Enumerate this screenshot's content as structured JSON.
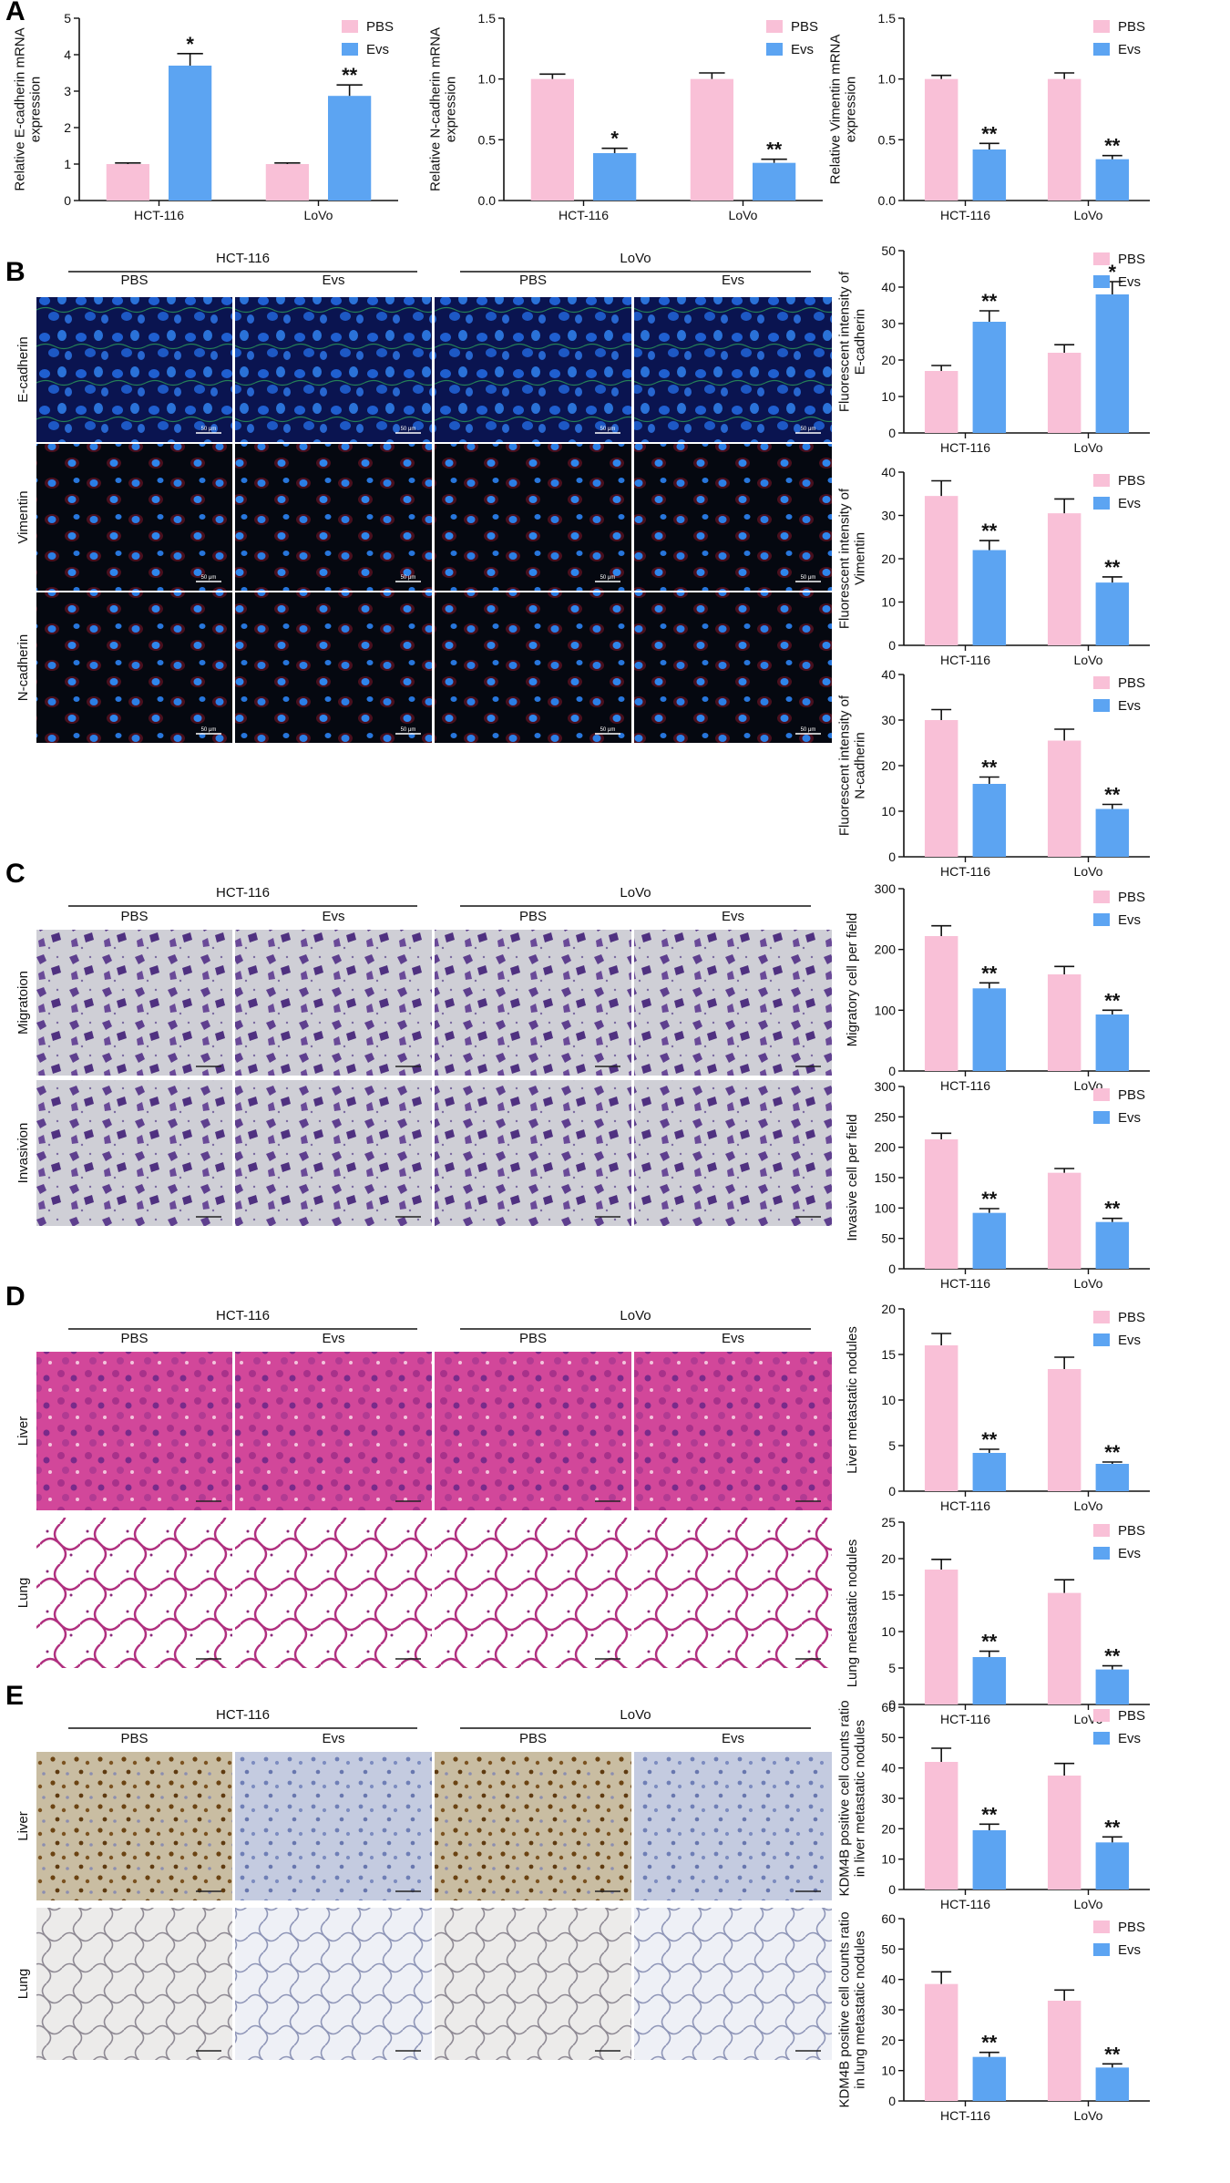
{
  "panel_letters": [
    "A",
    "B",
    "C",
    "D",
    "E"
  ],
  "colors": {
    "pbs": "#F9C0D7",
    "evs": "#5CA4F2",
    "ink": "#111111"
  },
  "image_blocks": [
    {
      "panel": "B",
      "cell_lines": [
        "HCT-116",
        "LoVo"
      ],
      "conditions": [
        "PBS",
        "Evs",
        "PBS",
        "Evs"
      ],
      "rows": [
        "E-cadherin",
        "Vimentin",
        "N-cadherin"
      ],
      "scalebar_label": "50 μm",
      "styles": [
        "if-green",
        "if-red",
        "if-red"
      ]
    },
    {
      "panel": "C",
      "cell_lines": [
        "HCT-116",
        "LoVo"
      ],
      "conditions": [
        "PBS",
        "Evs",
        "PBS",
        "Evs"
      ],
      "rows": [
        "Migratoion",
        "Invasivion"
      ],
      "styles": [
        "transwell",
        "transwell"
      ]
    },
    {
      "panel": "D",
      "cell_lines": [
        "HCT-116",
        "LoVo"
      ],
      "conditions": [
        "PBS",
        "Evs",
        "PBS",
        "Evs"
      ],
      "rows": [
        "Liver",
        "Lung"
      ],
      "styles": [
        "he-liver",
        "he-lung"
      ]
    },
    {
      "panel": "E",
      "cell_lines": [
        "HCT-116",
        "LoVo"
      ],
      "conditions": [
        "PBS",
        "Evs",
        "PBS",
        "Evs"
      ],
      "rows": [
        "Liver",
        "Lung"
      ],
      "styles": [
        "ihc-liver",
        "ihc-lung"
      ]
    }
  ],
  "chart_data": [
    {
      "type": "bar",
      "panel": "A",
      "categories": [
        "HCT-116",
        "LoVo"
      ],
      "ylabel": "Relative E-cadherin mRNA\nexpression",
      "ylim": [
        0,
        5
      ],
      "yticks": [
        "0",
        "1",
        "2",
        "3",
        "4",
        "5"
      ],
      "series": [
        {
          "name": "PBS",
          "values": [
            1.0,
            1.0
          ],
          "errors": [
            0.03,
            0.03
          ],
          "marks": [
            "",
            ""
          ]
        },
        {
          "name": "Evs",
          "values": [
            3.7,
            2.87
          ],
          "errors": [
            0.33,
            0.3
          ],
          "marks": [
            "*",
            "**"
          ]
        }
      ]
    },
    {
      "type": "bar",
      "panel": "A",
      "categories": [
        "HCT-116",
        "LoVo"
      ],
      "ylabel": "Relative N-cadherin mRNA\nexpression",
      "ylim": [
        0,
        1.5
      ],
      "yticks": [
        "0.0",
        "0.5",
        "1.0",
        "1.5"
      ],
      "series": [
        {
          "name": "PBS",
          "values": [
            1.0,
            1.0
          ],
          "errors": [
            0.04,
            0.05
          ],
          "marks": [
            "",
            ""
          ]
        },
        {
          "name": "Evs",
          "values": [
            0.39,
            0.31
          ],
          "errors": [
            0.04,
            0.03
          ],
          "marks": [
            "*",
            "**"
          ]
        }
      ]
    },
    {
      "type": "bar",
      "panel": "A",
      "categories": [
        "HCT-116",
        "LoVo"
      ],
      "ylabel": "Relative Vimentin mRNA\nexpression",
      "ylim": [
        0,
        1.5
      ],
      "yticks": [
        "0.0",
        "0.5",
        "1.0",
        "1.5"
      ],
      "series": [
        {
          "name": "PBS",
          "values": [
            1.0,
            1.0
          ],
          "errors": [
            0.03,
            0.05
          ],
          "marks": [
            "",
            ""
          ]
        },
        {
          "name": "Evs",
          "values": [
            0.42,
            0.34
          ],
          "errors": [
            0.05,
            0.03
          ],
          "marks": [
            "**",
            "**"
          ]
        }
      ]
    },
    {
      "type": "bar",
      "panel": "B",
      "categories": [
        "HCT-116",
        "LoVo"
      ],
      "ylabel": "Fluorescent intensity of\nE-cadherin",
      "ylim": [
        0,
        50
      ],
      "yticks": [
        "0",
        "10",
        "20",
        "30",
        "40",
        "50"
      ],
      "series": [
        {
          "name": "PBS",
          "values": [
            17,
            22
          ],
          "errors": [
            1.5,
            2.2
          ],
          "marks": [
            "",
            ""
          ]
        },
        {
          "name": "Evs",
          "values": [
            30.5,
            38
          ],
          "errors": [
            3,
            3.5
          ],
          "marks": [
            "**",
            "*"
          ]
        }
      ]
    },
    {
      "type": "bar",
      "panel": "B",
      "categories": [
        "HCT-116",
        "LoVo"
      ],
      "ylabel": "Fluorescent intensity of\nVimentin",
      "ylim": [
        0,
        40
      ],
      "yticks": [
        "0",
        "10",
        "20",
        "30",
        "40"
      ],
      "series": [
        {
          "name": "PBS",
          "values": [
            34.5,
            30.5
          ],
          "errors": [
            3.5,
            3.3
          ],
          "marks": [
            "",
            ""
          ]
        },
        {
          "name": "Evs",
          "values": [
            22,
            14.5
          ],
          "errors": [
            2.2,
            1.3
          ],
          "marks": [
            "**",
            "**"
          ]
        }
      ]
    },
    {
      "type": "bar",
      "panel": "B",
      "categories": [
        "HCT-116",
        "LoVo"
      ],
      "ylabel": "Fluorescent intensity of\nN-cadherin",
      "ylim": [
        0,
        40
      ],
      "yticks": [
        "0",
        "10",
        "20",
        "30",
        "40"
      ],
      "series": [
        {
          "name": "PBS",
          "values": [
            30,
            25.5
          ],
          "errors": [
            2.3,
            2.5
          ],
          "marks": [
            "",
            ""
          ]
        },
        {
          "name": "Evs",
          "values": [
            16,
            10.5
          ],
          "errors": [
            1.5,
            1
          ],
          "marks": [
            "**",
            "**"
          ]
        }
      ]
    },
    {
      "type": "bar",
      "panel": "C",
      "categories": [
        "HCT-116",
        "LoVo"
      ],
      "ylabel": "Migratory cell per field",
      "ylim": [
        0,
        300
      ],
      "yticks": [
        "0",
        "100",
        "200",
        "300"
      ],
      "series": [
        {
          "name": "PBS",
          "values": [
            222,
            159
          ],
          "errors": [
            17,
            13
          ],
          "marks": [
            "",
            ""
          ]
        },
        {
          "name": "Evs",
          "values": [
            136,
            93
          ],
          "errors": [
            9,
            7
          ],
          "marks": [
            "**",
            "**"
          ]
        }
      ]
    },
    {
      "type": "bar",
      "panel": "C",
      "categories": [
        "HCT-116",
        "LoVo"
      ],
      "ylabel": "Invasive cell per field",
      "ylim": [
        0,
        300
      ],
      "yticks": [
        "0",
        "50",
        "100",
        "150",
        "200",
        "250",
        "300"
      ],
      "series": [
        {
          "name": "PBS",
          "values": [
            213,
            158
          ],
          "errors": [
            10,
            7
          ],
          "marks": [
            "",
            ""
          ]
        },
        {
          "name": "Evs",
          "values": [
            92,
            77
          ],
          "errors": [
            7,
            6
          ],
          "marks": [
            "**",
            "**"
          ]
        }
      ]
    },
    {
      "type": "bar",
      "panel": "D",
      "categories": [
        "HCT-116",
        "LoVo"
      ],
      "ylabel": "Liver metastatic nodules",
      "ylim": [
        0,
        20
      ],
      "yticks": [
        "0",
        "5",
        "10",
        "15",
        "20"
      ],
      "series": [
        {
          "name": "PBS",
          "values": [
            16,
            13.4
          ],
          "errors": [
            1.3,
            1.3
          ],
          "marks": [
            "",
            ""
          ]
        },
        {
          "name": "Evs",
          "values": [
            4.2,
            3
          ],
          "errors": [
            0.4,
            0.2
          ],
          "marks": [
            "**",
            "**"
          ]
        }
      ]
    },
    {
      "type": "bar",
      "panel": "D",
      "categories": [
        "HCT-116",
        "LoVo"
      ],
      "ylabel": "Lung metastatic nodules",
      "ylim": [
        0,
        25
      ],
      "yticks": [
        "0",
        "5",
        "10",
        "15",
        "20",
        "25"
      ],
      "series": [
        {
          "name": "PBS",
          "values": [
            18.5,
            15.3
          ],
          "errors": [
            1.4,
            1.8
          ],
          "marks": [
            "",
            ""
          ]
        },
        {
          "name": "Evs",
          "values": [
            6.5,
            4.8
          ],
          "errors": [
            0.8,
            0.5
          ],
          "marks": [
            "**",
            "**"
          ]
        }
      ]
    },
    {
      "type": "bar",
      "panel": "E",
      "categories": [
        "HCT-116",
        "LoVo"
      ],
      "ylabel": "KDM4B positive cell counts ratio\nin liver metastatic nodules",
      "ylim": [
        0,
        60
      ],
      "yticks": [
        "0",
        "10",
        "20",
        "30",
        "40",
        "50",
        "60"
      ],
      "series": [
        {
          "name": "PBS",
          "values": [
            42,
            37.5
          ],
          "errors": [
            4.5,
            4
          ],
          "marks": [
            "",
            ""
          ]
        },
        {
          "name": "Evs",
          "values": [
            19.5,
            15.5
          ],
          "errors": [
            2,
            1.8
          ],
          "marks": [
            "**",
            "**"
          ]
        }
      ]
    },
    {
      "type": "bar",
      "panel": "E",
      "categories": [
        "HCT-116",
        "LoVo"
      ],
      "ylabel": "KDM4B positive cell counts ratio\nin lung metastatic nodules",
      "ylim": [
        0,
        60
      ],
      "yticks": [
        "0",
        "10",
        "20",
        "30",
        "40",
        "50",
        "60"
      ],
      "series": [
        {
          "name": "PBS",
          "values": [
            38.5,
            33
          ],
          "errors": [
            4,
            3.5
          ],
          "marks": [
            "",
            ""
          ]
        },
        {
          "name": "Evs",
          "values": [
            14.5,
            11
          ],
          "errors": [
            1.5,
            1.2
          ],
          "marks": [
            "**",
            "**"
          ]
        }
      ]
    }
  ]
}
